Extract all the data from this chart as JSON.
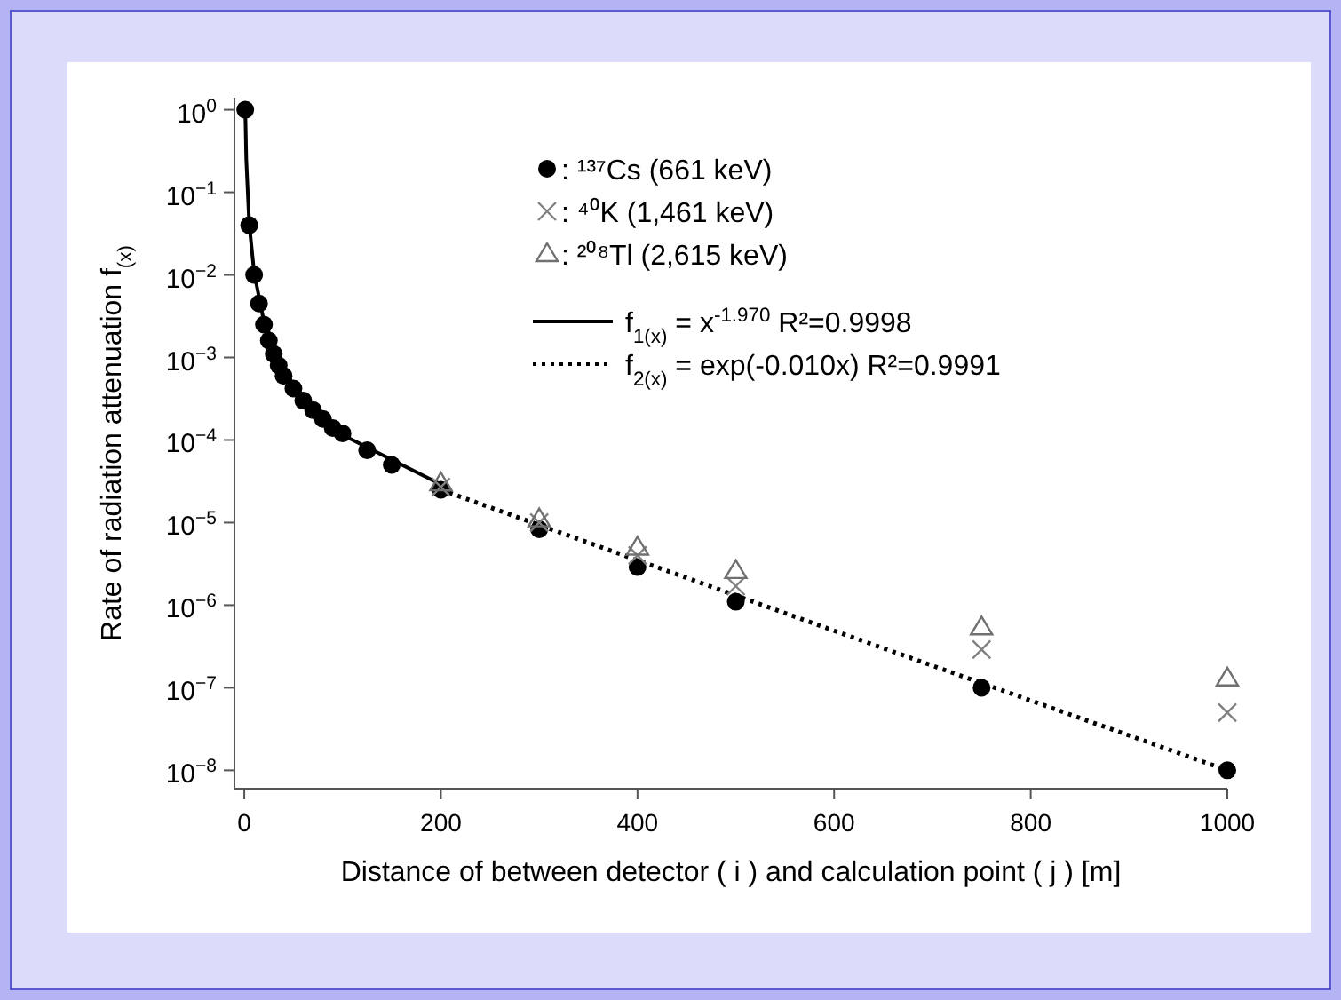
{
  "chart_data": {
    "type": "scatter",
    "xlabel": "Distance of between detector ( i ) and calculation point ( j ) [m]",
    "ylabel": "Rate of radiation attenuation f$_{(x)}$",
    "log": "y",
    "xlim": [
      -10,
      1000
    ],
    "ylim": [
      6e-09,
      1.4
    ],
    "xticks": [
      0,
      200,
      400,
      600,
      800,
      1000
    ],
    "yticks": [
      {
        "value": 1,
        "label": "10$^{0}$"
      },
      {
        "value": 0.1,
        "label": "10$^{−1}$"
      },
      {
        "value": 0.01,
        "label": "10$^{−2}$"
      },
      {
        "value": 0.001,
        "label": "10$^{−3}$"
      },
      {
        "value": 0.0001,
        "label": "10$^{−4}$"
      },
      {
        "value": 1e-05,
        "label": "10$^{−5}$"
      },
      {
        "value": 1e-06,
        "label": "10$^{−6}$"
      },
      {
        "value": 1e-07,
        "label": "10$^{−7}$"
      },
      {
        "value": 1e-08,
        "label": "10$^{−8}$"
      }
    ],
    "grid": false,
    "legend": "top right",
    "series": [
      {
        "name": ": ¹³⁷Cs (661 keV)",
        "color": "#000000",
        "marker": "circle",
        "x": [
          1,
          5,
          10,
          15,
          20,
          25,
          30,
          35,
          40,
          50,
          60,
          70,
          80,
          90,
          100,
          125,
          150,
          200,
          300,
          400,
          500,
          750,
          1000
        ],
        "values": [
          1,
          0.04,
          0.01,
          0.0045,
          0.0025,
          0.0016,
          0.0011,
          0.0008,
          0.0006,
          0.00042,
          0.0003,
          0.00023,
          0.00018,
          0.00014,
          0.00012,
          7.5e-05,
          5e-05,
          2.5e-05,
          8.3e-06,
          2.9e-06,
          1.1e-06,
          1e-07,
          1e-08
        ]
      },
      {
        "name": ": ⁴⁰K (1,461 keV)",
        "color": "#808080",
        "marker": "cross",
        "x": [
          200,
          300,
          400,
          500,
          750,
          1000
        ],
        "values": [
          2.7e-05,
          1e-05,
          4e-06,
          1.7e-06,
          2.9e-07,
          5e-08
        ]
      },
      {
        "name": ": ²⁰⁸Tl (2,615 keV)",
        "color": "#707070",
        "marker": "triangle",
        "x": [
          200,
          300,
          400,
          500,
          750,
          1000
        ],
        "values": [
          3e-05,
          1.1e-05,
          5e-06,
          2.6e-06,
          5.4e-07,
          1.3e-07
        ]
      },
      {
        "name": "f$_{1(x)}$ = x$^{-1.970}$  R²=0.9998",
        "type": "line",
        "color": "#000000",
        "marker": "none",
        "line_style": "solid",
        "x": [
          1,
          2,
          5,
          10,
          20,
          50,
          100,
          200
        ],
        "values": [
          1,
          0.255,
          0.042,
          0.0107,
          0.0027,
          0.00045,
          0.000115,
          2.9e-05
        ]
      },
      {
        "name": "f$_{2(x)}$ = exp(-0.010x)  R²=0.9991",
        "type": "line",
        "color": "#000000",
        "marker": "none",
        "line_style": "dotted",
        "x": [
          200,
          400,
          600,
          800,
          1000
        ],
        "values": [
          2.5e-05,
          3.5e-06,
          4.9e-07,
          7e-08,
          1e-08
        ]
      }
    ]
  }
}
